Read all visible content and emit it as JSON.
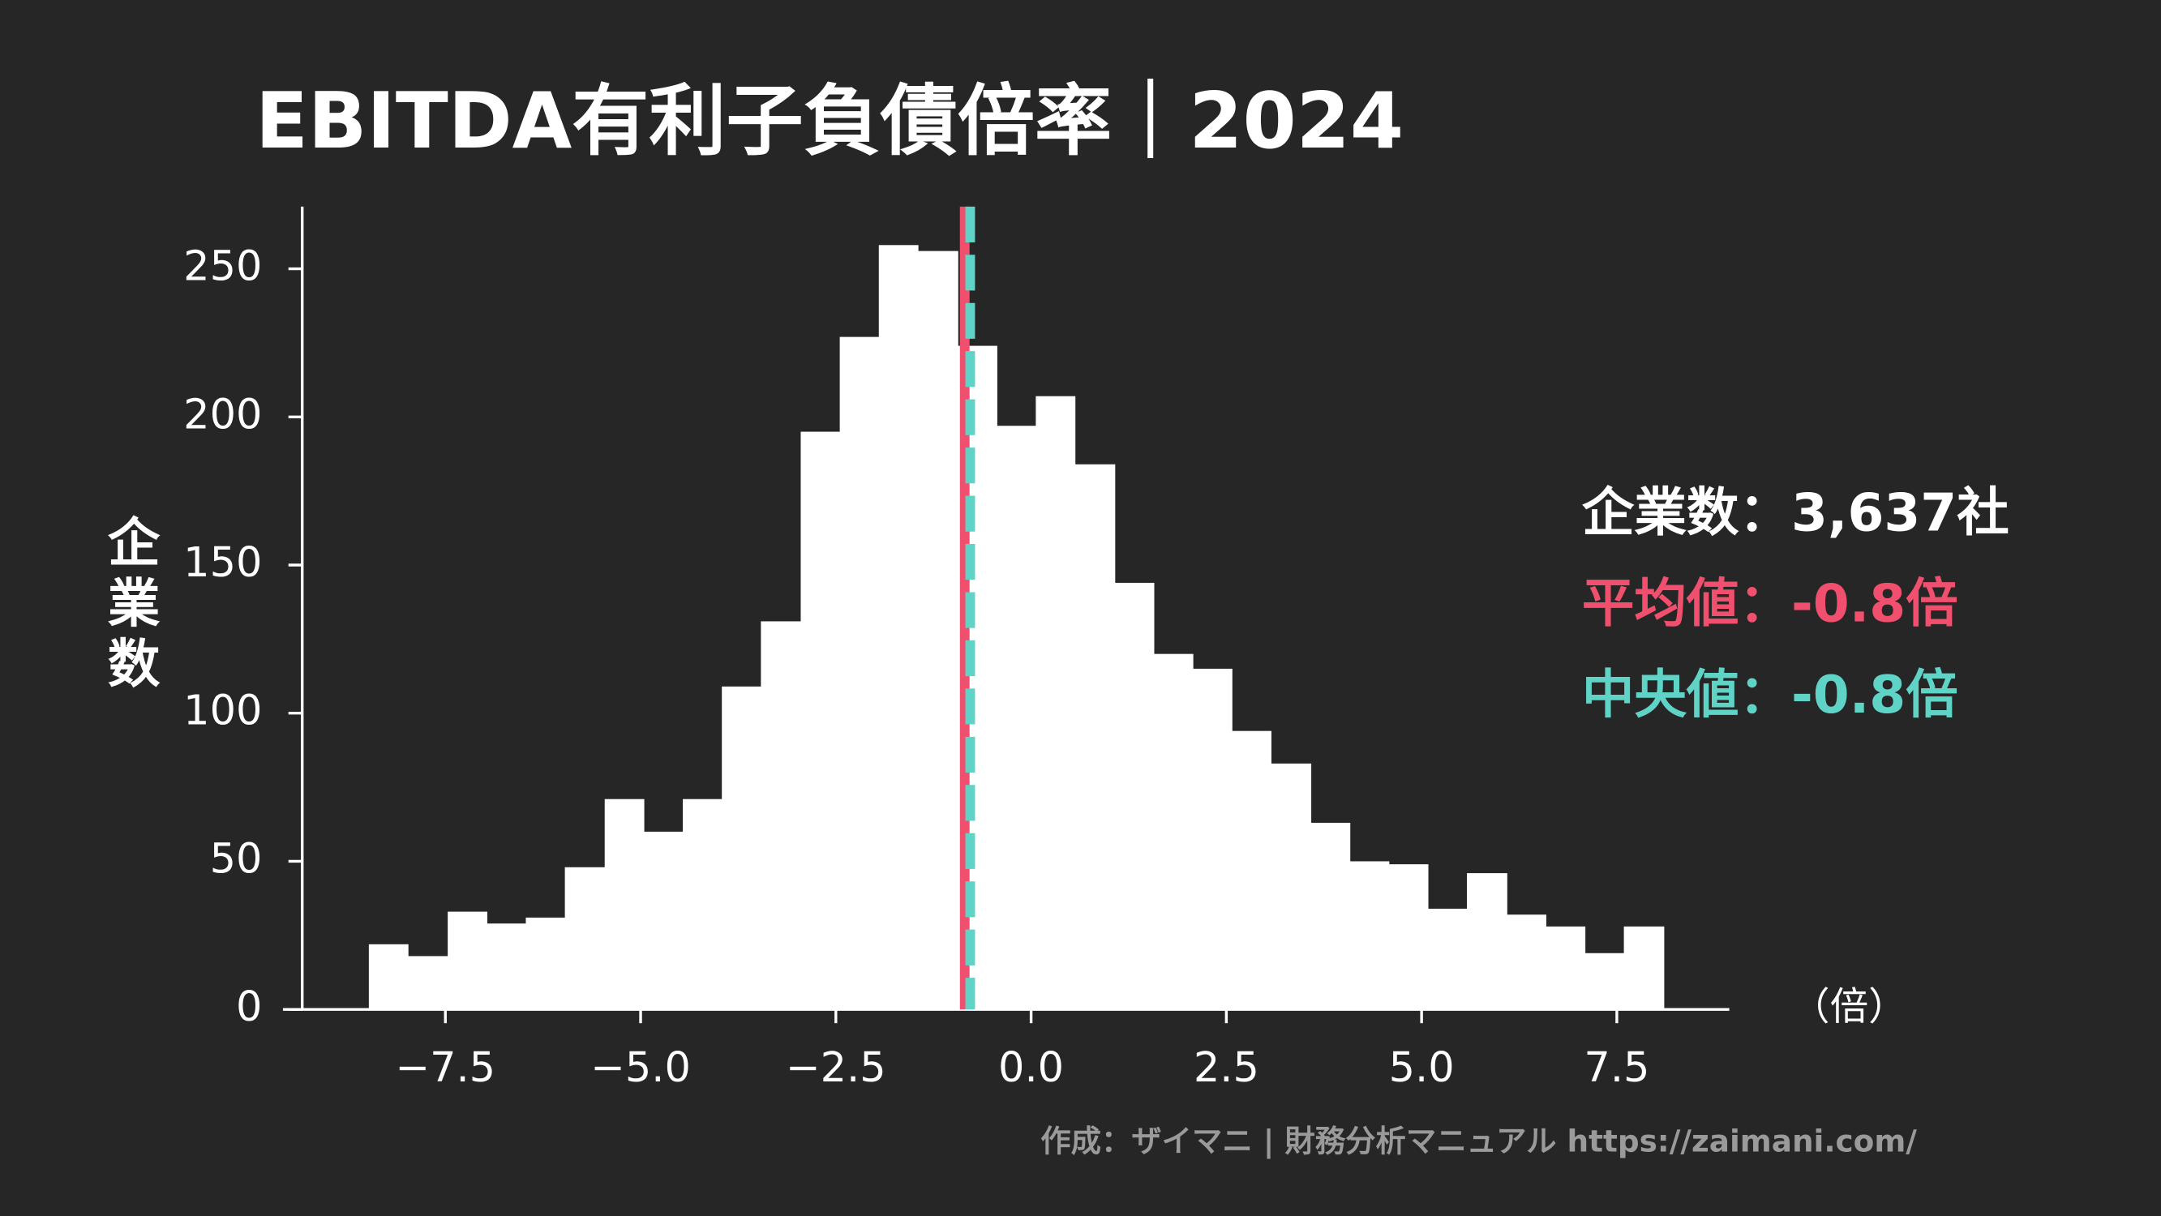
{
  "chart_data": {
    "type": "histogram",
    "title": "EBITDA有利子負債倍率｜2024",
    "y_label": "企業数",
    "x_unit_label": "（倍）",
    "bins": [
      -8.48,
      -7.98,
      -7.47,
      -6.97,
      -6.47,
      -5.97,
      -5.46,
      -4.96,
      -4.46,
      -3.96,
      -3.46,
      -2.95,
      -2.45,
      -1.95,
      -1.45,
      -0.94,
      -0.44,
      0.06,
      0.56,
      1.07,
      1.57,
      2.07,
      2.57,
      3.07,
      3.58,
      4.08,
      4.58,
      5.08,
      5.58,
      6.09,
      6.59,
      7.09,
      7.59,
      8.1
    ],
    "counts": [
      22,
      18,
      33,
      29,
      31,
      48,
      71,
      60,
      71,
      109,
      131,
      195,
      227,
      258,
      256,
      224,
      197,
      207,
      184,
      144,
      120,
      115,
      94,
      83,
      63,
      50,
      49,
      34,
      46,
      32,
      28,
      19,
      28
    ],
    "color": "#ffffff",
    "xlim": [
      -9.58,
      8.94
    ],
    "ylim": [
      0,
      271
    ],
    "xticks": [
      {
        "value": -7.5,
        "label": "−7.5"
      },
      {
        "value": -5,
        "label": "−5.0"
      },
      {
        "value": -2.5,
        "label": "−2.5"
      },
      {
        "value": 0,
        "label": "0.0"
      },
      2.5,
      {
        "value": 5,
        "label": "5.0"
      },
      7.5
    ],
    "yticks": [
      0,
      50,
      100,
      150,
      200,
      250
    ],
    "lines": [
      {
        "name": "平均値",
        "value": -0.85,
        "color": "#f0506e",
        "style": "solid"
      },
      {
        "name": "中央値",
        "value": -0.78,
        "color": "#5fd3c6",
        "style": "dashed"
      }
    ],
    "stats": [
      {
        "text": "企業数：3,637社",
        "color": "#ffffff"
      },
      {
        "text": "平均値：-0.8倍",
        "color": "#f0506e"
      },
      {
        "text": "中央値：-0.8倍",
        "color": "#5fd3c6"
      }
    ],
    "footer": "作成：ザイマニ | 財務分析マニュアル https://zaimani.com/"
  }
}
